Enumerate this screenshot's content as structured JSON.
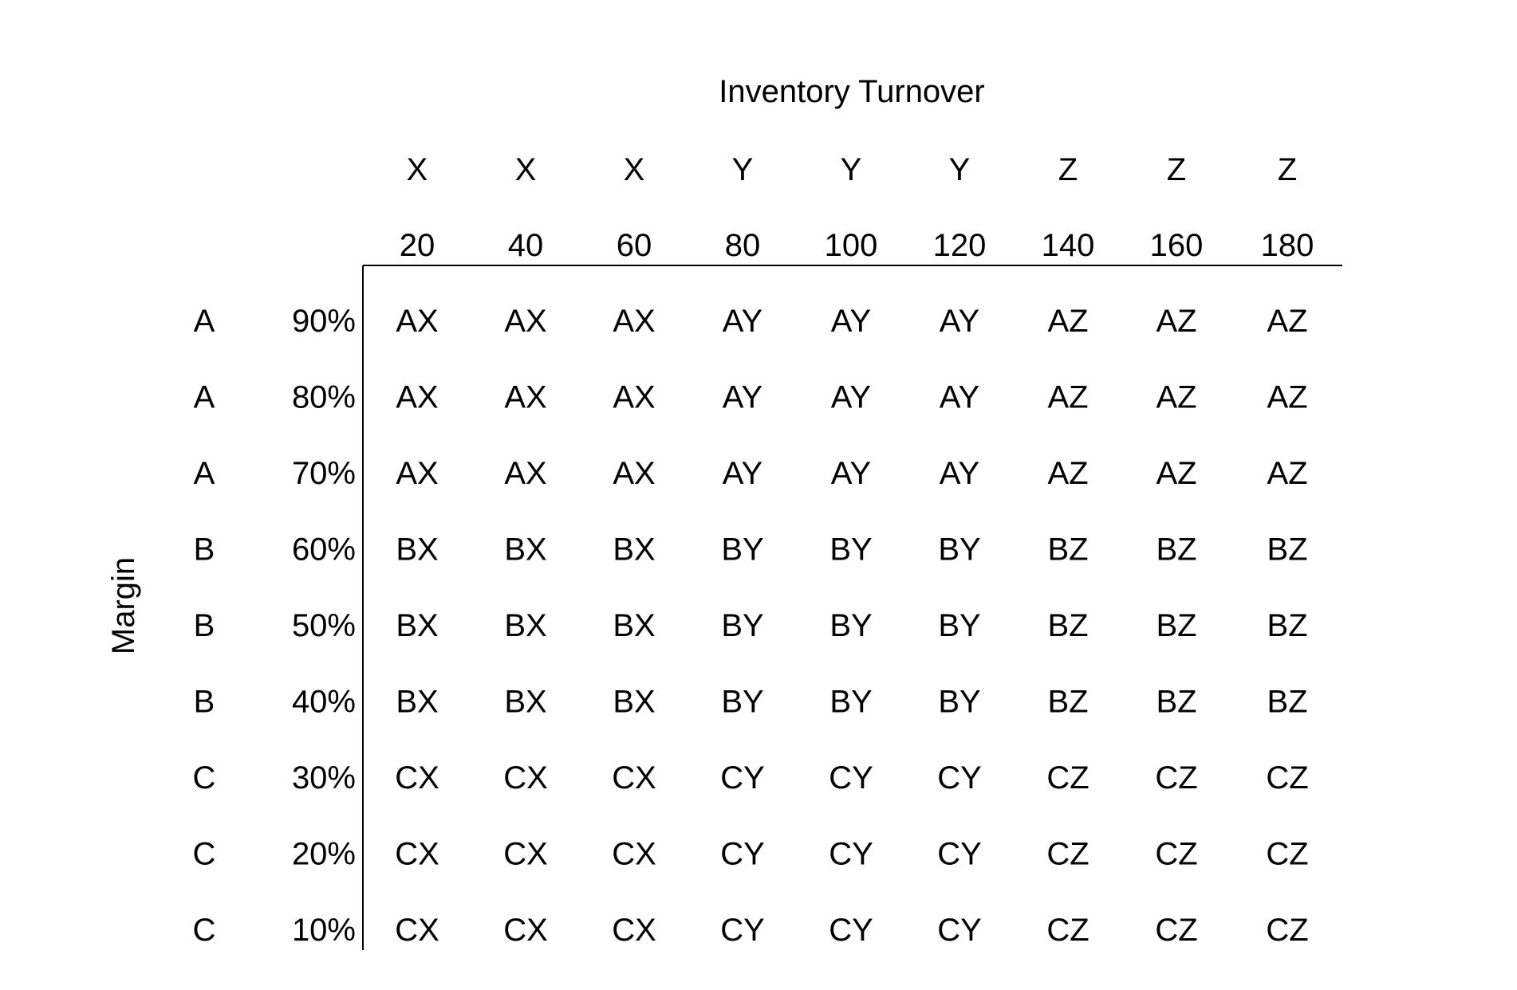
{
  "chart_data": {
    "type": "table",
    "title": "Inventory Turnover",
    "row_axis_label": "Margin",
    "column_groups": [
      "X",
      "X",
      "X",
      "Y",
      "Y",
      "Y",
      "Z",
      "Z",
      "Z"
    ],
    "column_values": [
      "20",
      "40",
      "60",
      "80",
      "100",
      "120",
      "140",
      "160",
      "180"
    ],
    "row_groups": [
      "A",
      "A",
      "A",
      "B",
      "B",
      "B",
      "C",
      "C",
      "C"
    ],
    "row_values": [
      "90%",
      "80%",
      "70%",
      "60%",
      "50%",
      "40%",
      "30%",
      "20%",
      "10%"
    ],
    "cells": [
      [
        "AX",
        "AX",
        "AX",
        "AY",
        "AY",
        "AY",
        "AZ",
        "AZ",
        "AZ"
      ],
      [
        "AX",
        "AX",
        "AX",
        "AY",
        "AY",
        "AY",
        "AZ",
        "AZ",
        "AZ"
      ],
      [
        "AX",
        "AX",
        "AX",
        "AY",
        "AY",
        "AY",
        "AZ",
        "AZ",
        "AZ"
      ],
      [
        "BX",
        "BX",
        "BX",
        "BY",
        "BY",
        "BY",
        "BZ",
        "BZ",
        "BZ"
      ],
      [
        "BX",
        "BX",
        "BX",
        "BY",
        "BY",
        "BY",
        "BZ",
        "BZ",
        "BZ"
      ],
      [
        "BX",
        "BX",
        "BX",
        "BY",
        "BY",
        "BY",
        "BZ",
        "BZ",
        "BZ"
      ],
      [
        "CX",
        "CX",
        "CX",
        "CY",
        "CY",
        "CY",
        "CZ",
        "CZ",
        "CZ"
      ],
      [
        "CX",
        "CX",
        "CX",
        "CY",
        "CY",
        "CY",
        "CZ",
        "CZ",
        "CZ"
      ],
      [
        "CX",
        "CX",
        "CX",
        "CY",
        "CY",
        "CY",
        "CZ",
        "CZ",
        "CZ"
      ]
    ]
  }
}
